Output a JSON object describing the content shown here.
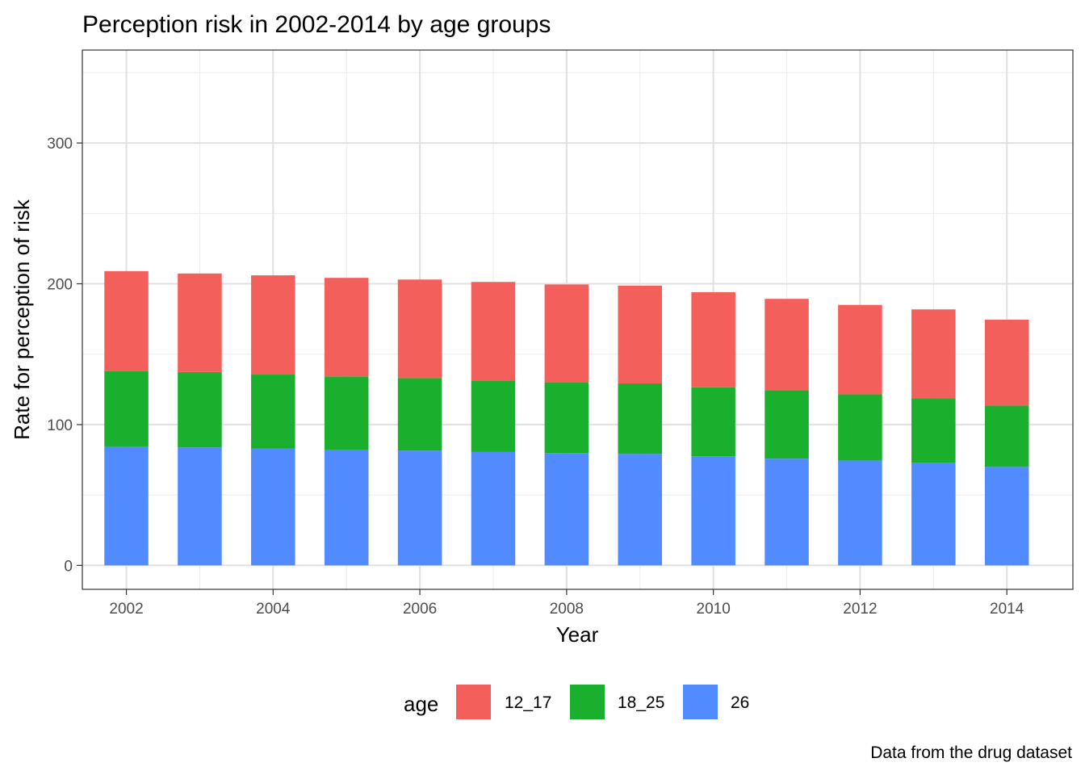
{
  "chart_data": {
    "type": "bar",
    "stacked": true,
    "title": "Perception risk in 2002-2014 by age groups",
    "xlabel": "Year",
    "ylabel": "Rate for perception of risk",
    "caption": "Data from the drug dataset",
    "x": [
      2002,
      2003,
      2004,
      2005,
      2006,
      2007,
      2008,
      2009,
      2010,
      2011,
      2012,
      2013,
      2014
    ],
    "xlim": [
      2001.4,
      2014.9
    ],
    "ylim": [
      -17,
      366
    ],
    "x_ticks": [
      2002,
      2004,
      2006,
      2008,
      2010,
      2012,
      2014
    ],
    "y_ticks": [
      0,
      100,
      200,
      300
    ],
    "grid": true,
    "legend": {
      "title": "age",
      "position": "bottom"
    },
    "series": [
      {
        "name": "26",
        "color": "#528bff",
        "values": [
          84.5,
          83.8,
          83.0,
          82.2,
          81.5,
          80.5,
          79.8,
          79.2,
          77.5,
          75.8,
          74.5,
          72.8,
          70.0
        ]
      },
      {
        "name": "18_25",
        "color": "#1ab02e",
        "values": [
          53.5,
          53.5,
          52.5,
          52.0,
          51.5,
          50.8,
          50.2,
          50.0,
          49.0,
          48.5,
          47.0,
          46.0,
          43.5
        ]
      },
      {
        "name": "12_17",
        "color": "#f35f5b",
        "values": [
          71.0,
          70.0,
          70.5,
          70.0,
          70.0,
          70.0,
          69.5,
          69.5,
          67.5,
          65.0,
          63.5,
          63.0,
          61.0
        ]
      }
    ]
  }
}
